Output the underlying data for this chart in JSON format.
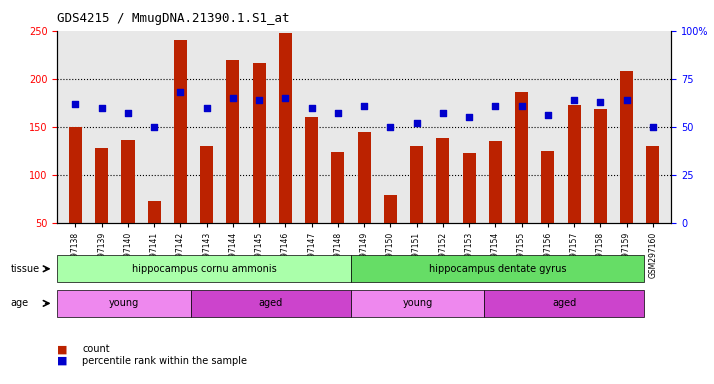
{
  "title": "GDS4215 / MmugDNA.21390.1.S1_at",
  "samples": [
    "GSM297138",
    "GSM297139",
    "GSM297140",
    "GSM297141",
    "GSM297142",
    "GSM297143",
    "GSM297144",
    "GSM297145",
    "GSM297146",
    "GSM297147",
    "GSM297148",
    "GSM297149",
    "GSM297150",
    "GSM297151",
    "GSM297152",
    "GSM297153",
    "GSM297154",
    "GSM297155",
    "GSM297156",
    "GSM297157",
    "GSM297158",
    "GSM297159",
    "GSM297160"
  ],
  "counts": [
    150,
    128,
    136,
    73,
    240,
    130,
    220,
    216,
    248,
    160,
    124,
    145,
    79,
    130,
    138,
    123,
    135,
    186,
    125,
    173,
    168,
    208,
    130
  ],
  "percentile": [
    62,
    60,
    57,
    50,
    68,
    60,
    65,
    64,
    65,
    60,
    57,
    61,
    50,
    52,
    57,
    55,
    61,
    61,
    56,
    64,
    63,
    64,
    50
  ],
  "bar_color": "#bb2200",
  "dot_color": "#0000cc",
  "ylim_left": [
    50,
    250
  ],
  "ylim_right": [
    0,
    100
  ],
  "yticks_left": [
    50,
    100,
    150,
    200,
    250
  ],
  "yticks_right": [
    0,
    25,
    50,
    75,
    100
  ],
  "ytick_labels_right": [
    "0",
    "25",
    "50",
    "75",
    "100%"
  ],
  "grid_lines": [
    100,
    150,
    200
  ],
  "tissue_groups": [
    {
      "label": "hippocampus cornu ammonis",
      "start": 0,
      "end": 11,
      "color": "#aaffaa"
    },
    {
      "label": "hippocampus dentate gyrus",
      "start": 11,
      "end": 22,
      "color": "#66dd66"
    }
  ],
  "age_groups": [
    {
      "label": "young",
      "start": 0,
      "end": 5,
      "color": "#ee88ee"
    },
    {
      "label": "aged",
      "start": 5,
      "end": 11,
      "color": "#cc44cc"
    },
    {
      "label": "young",
      "start": 11,
      "end": 16,
      "color": "#ee88ee"
    },
    {
      "label": "aged",
      "start": 16,
      "end": 22,
      "color": "#cc44cc"
    }
  ],
  "legend_items": [
    {
      "label": "count",
      "color": "#bb2200",
      "marker": "s"
    },
    {
      "label": "percentile rank within the sample",
      "color": "#0000cc",
      "marker": "s"
    }
  ],
  "bg_color": "#e8e8e8",
  "tissue_label": "tissue",
  "age_label": "age"
}
